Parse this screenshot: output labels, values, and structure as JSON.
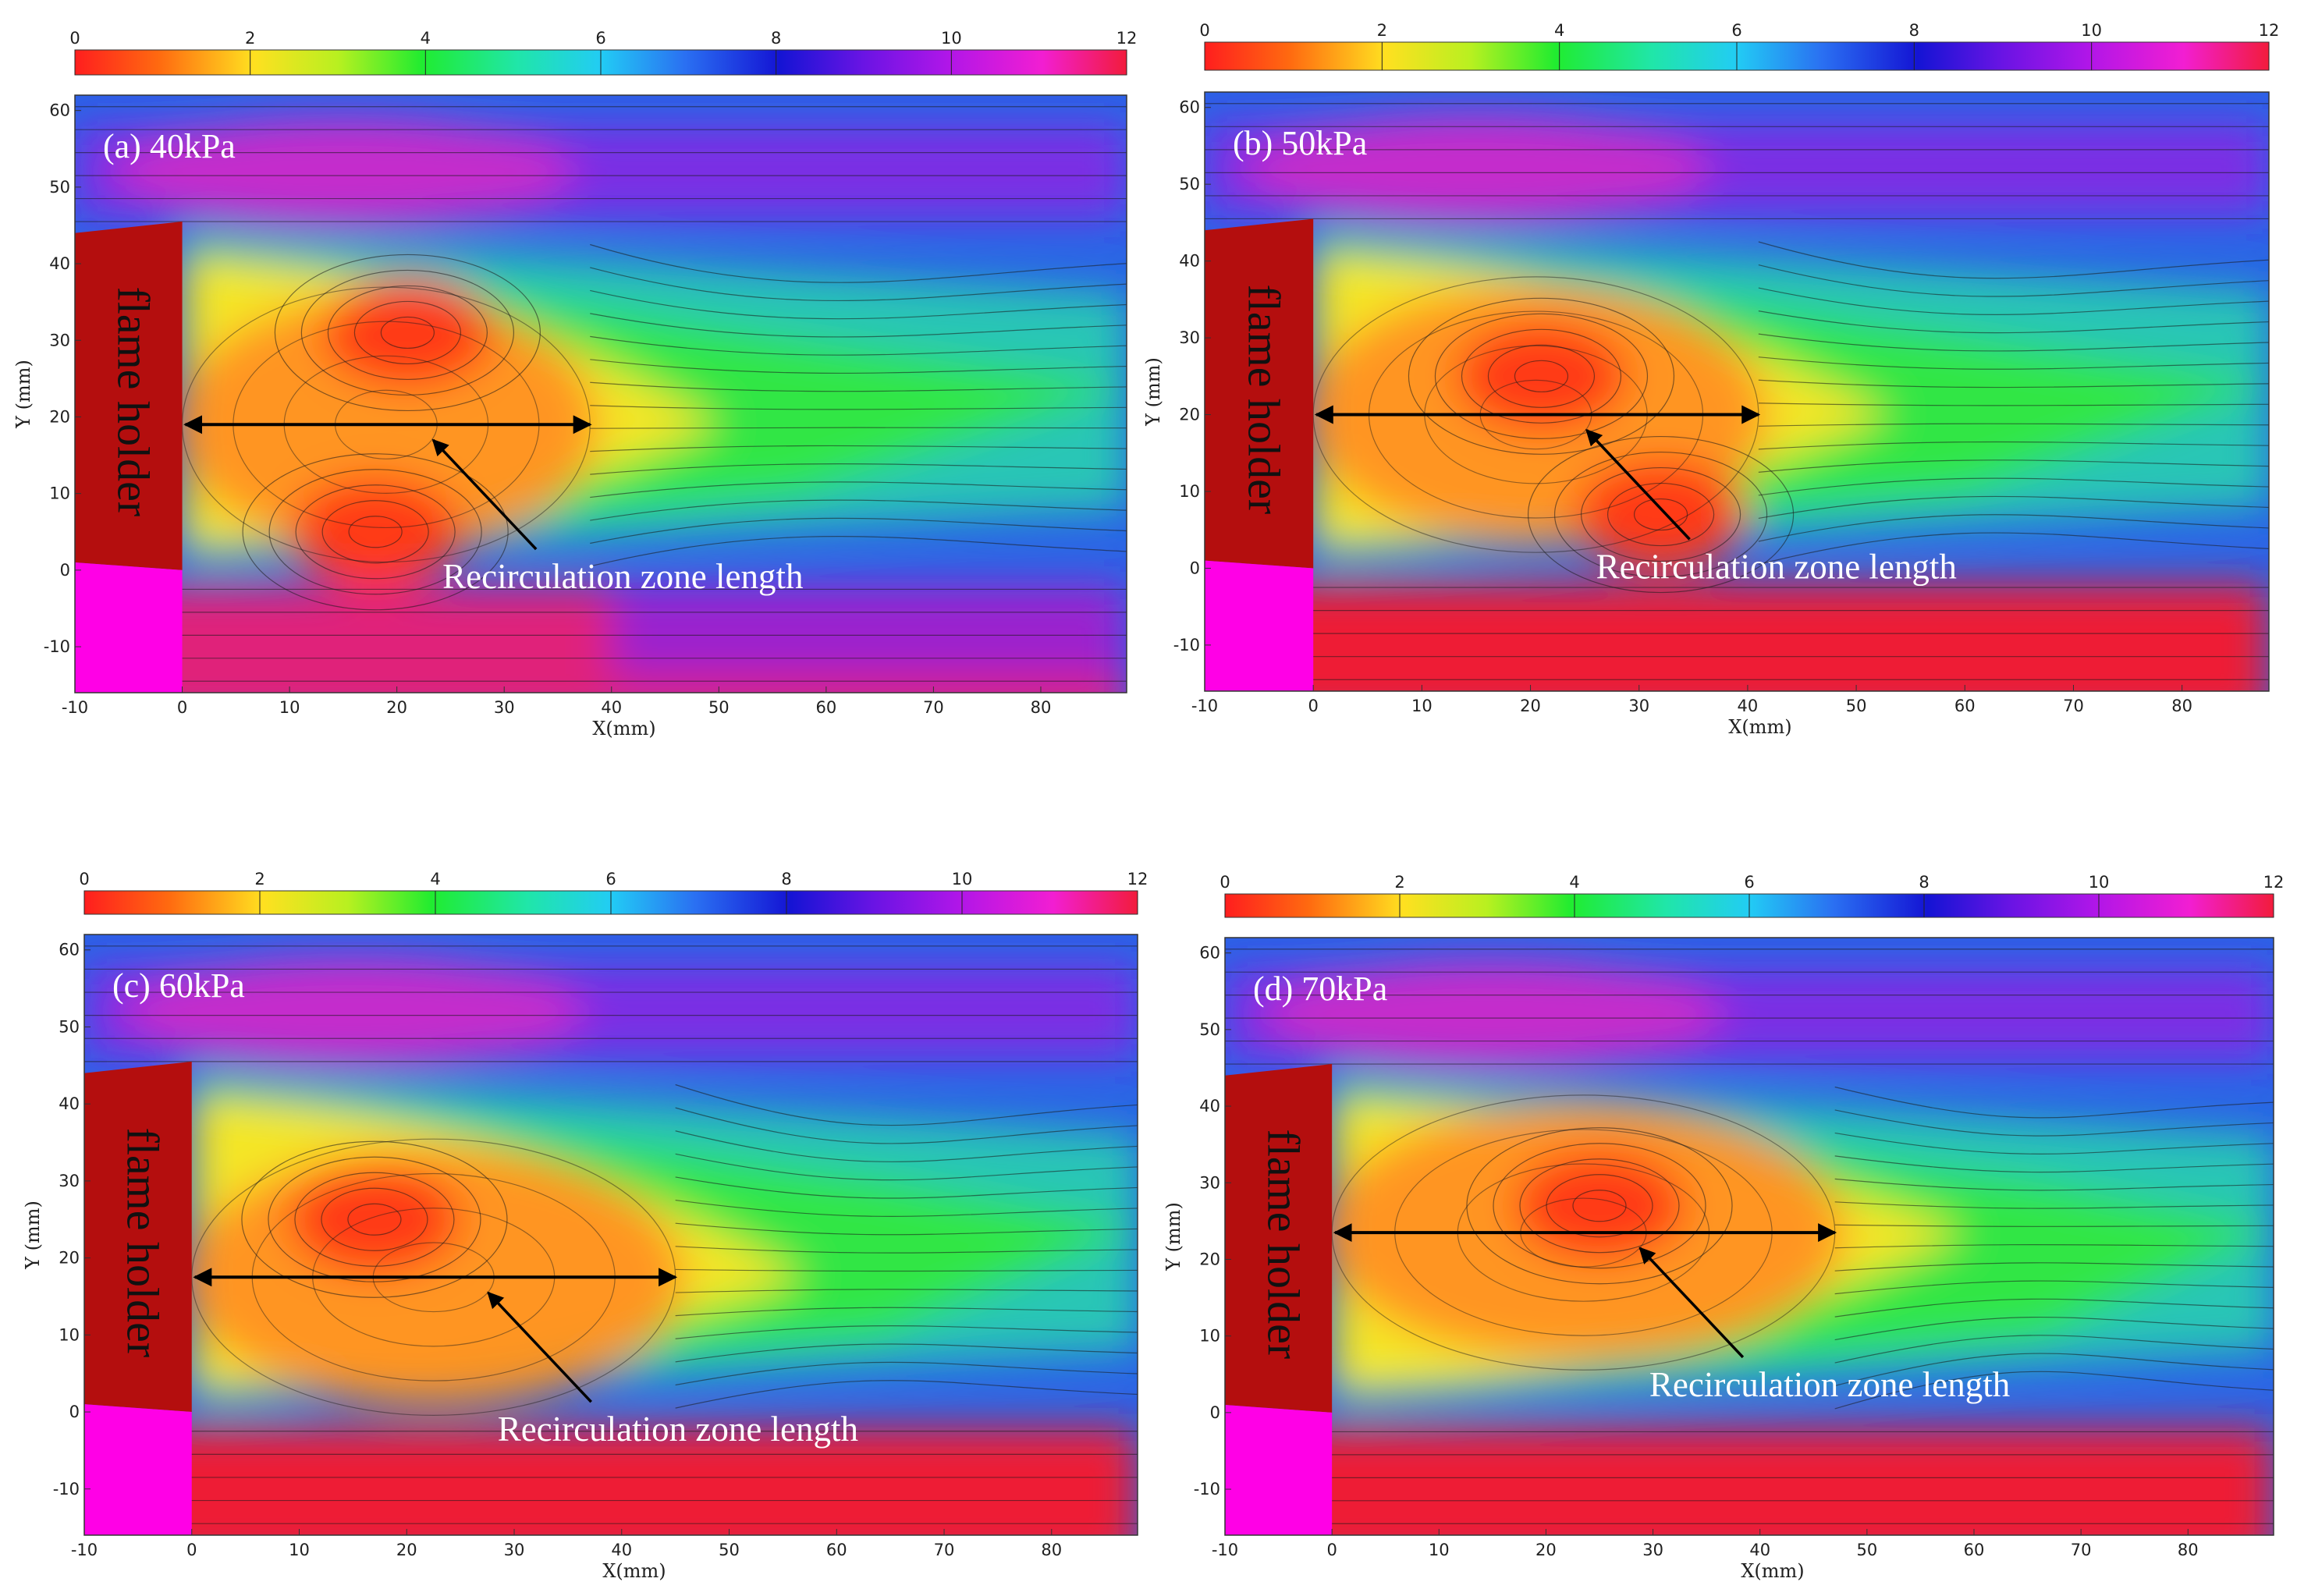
{
  "chart_data": [
    {
      "type": "heatmap",
      "panel_label": "(a) 40kPa",
      "xlabel": "X(mm)",
      "ylabel": "Y (mm)",
      "xlim": [
        -10,
        88
      ],
      "ylim": [
        -16,
        62
      ],
      "xticks": [
        -10,
        0,
        10,
        20,
        30,
        40,
        50,
        60,
        70,
        80
      ],
      "yticks": [
        -10,
        0,
        10,
        20,
        30,
        40,
        50,
        60
      ],
      "colorbar": {
        "min": 0,
        "max": 12,
        "ticks": [
          0,
          2,
          4,
          6,
          8,
          10,
          12
        ]
      },
      "flame_holder_text": "flame holder",
      "annotation": "Recirculation zone length",
      "recirculation_zone": {
        "x_start": 0,
        "x_end": 38,
        "y": 19
      },
      "vortices": [
        {
          "x": 21,
          "y": 31
        },
        {
          "x": 18,
          "y": 5
        }
      ]
    },
    {
      "type": "heatmap",
      "panel_label": "(b)  50kPa",
      "xlabel": "X(mm)",
      "ylabel": "Y (mm)",
      "xlim": [
        -10,
        88
      ],
      "ylim": [
        -16,
        62
      ],
      "xticks": [
        -10,
        0,
        10,
        20,
        30,
        40,
        50,
        60,
        70,
        80
      ],
      "yticks": [
        -10,
        0,
        10,
        20,
        30,
        40,
        50,
        60
      ],
      "colorbar": {
        "min": 0,
        "max": 12,
        "ticks": [
          0,
          2,
          4,
          6,
          8,
          10,
          12
        ]
      },
      "flame_holder_text": "flame holder",
      "annotation": "Recirculation zone length",
      "recirculation_zone": {
        "x_start": 0,
        "x_end": 41,
        "y": 20
      },
      "vortices": [
        {
          "x": 21,
          "y": 25
        },
        {
          "x": 32,
          "y": 7
        }
      ]
    },
    {
      "type": "heatmap",
      "panel_label": "(c) 60kPa",
      "xlabel": "X(mm)",
      "ylabel": "Y (mm)",
      "xlim": [
        -10,
        88
      ],
      "ylim": [
        -16,
        62
      ],
      "xticks": [
        -10,
        0,
        10,
        20,
        30,
        40,
        50,
        60,
        70,
        80
      ],
      "yticks": [
        -10,
        0,
        10,
        20,
        30,
        40,
        50,
        60
      ],
      "colorbar": {
        "min": 0,
        "max": 12,
        "ticks": [
          0,
          2,
          4,
          6,
          8,
          10,
          12
        ]
      },
      "flame_holder_text": "flame holder",
      "annotation": "Recirculation zone length",
      "recirculation_zone": {
        "x_start": 0,
        "x_end": 45,
        "y": 17.5
      },
      "vortices": [
        {
          "x": 17,
          "y": 25
        }
      ]
    },
    {
      "type": "heatmap",
      "panel_label": "(d)   70kPa",
      "xlabel": "X(mm)",
      "ylabel": "Y (mm)",
      "xlim": [
        -10,
        88
      ],
      "ylim": [
        -16,
        62
      ],
      "xticks": [
        -10,
        0,
        10,
        20,
        30,
        40,
        50,
        60,
        70,
        80
      ],
      "yticks": [
        -10,
        0,
        10,
        20,
        30,
        40,
        50,
        60
      ],
      "colorbar": {
        "min": 0,
        "max": 12,
        "ticks": [
          0,
          2,
          4,
          6,
          8,
          10,
          12
        ]
      },
      "flame_holder_text": "flame holder",
      "annotation": "Recirculation zone length",
      "recirculation_zone": {
        "x_start": 0,
        "x_end": 47,
        "y": 23.5
      },
      "vortices": [
        {
          "x": 25,
          "y": 27
        }
      ]
    }
  ]
}
